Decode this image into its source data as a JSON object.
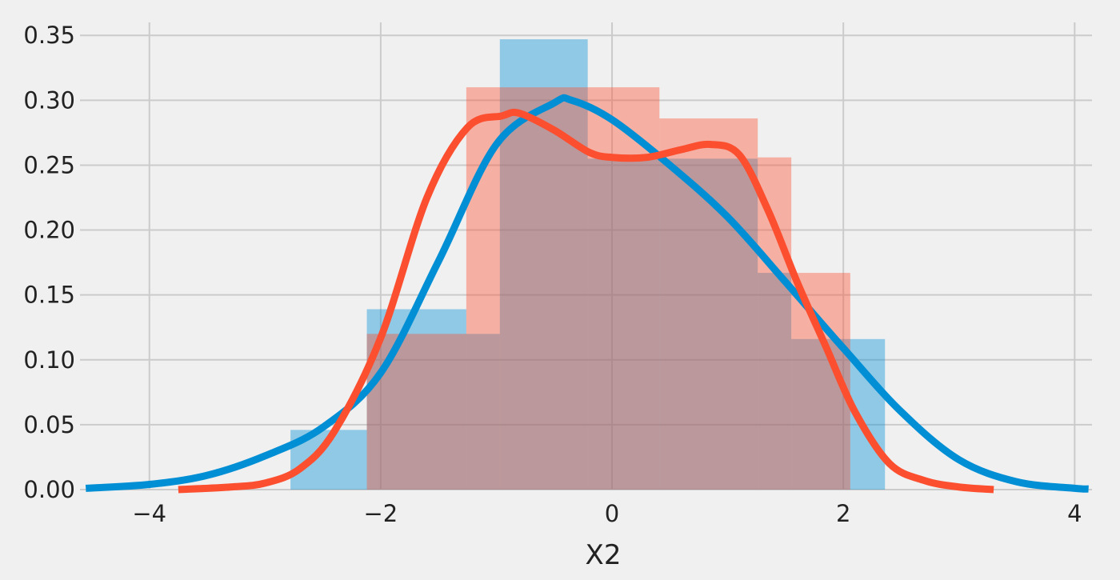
{
  "chart_data": {
    "type": "histogram",
    "title": "",
    "xlabel": "X2",
    "ylabel": "",
    "xlim": [
      -4.6,
      4.15
    ],
    "ylim": [
      0,
      0.36
    ],
    "xticks": [
      -4,
      -2,
      0,
      2,
      4
    ],
    "xtick_labels": [
      "−4",
      "−2",
      "0",
      "2",
      "4"
    ],
    "yticks": [
      0,
      0.05,
      0.1,
      0.15,
      0.2,
      0.25,
      0.3,
      0.35
    ],
    "ytick_labels": [
      "0.00",
      "0.05",
      "0.10",
      "0.15",
      "0.20",
      "0.25",
      "0.30",
      "0.35"
    ],
    "grid": true,
    "legend": null,
    "series": [
      {
        "color": "#008fd5",
        "hist_color": "#008fd5",
        "hist_opacity": 0.4,
        "bins": [
          {
            "x0": -2.78,
            "x1": -2.12,
            "height": 0.046
          },
          {
            "x0": -2.12,
            "x1": -1.26,
            "height": 0.139
          },
          {
            "x0": -1.26,
            "x1": -0.97,
            "height": 0.12
          },
          {
            "x0": -0.97,
            "x1": -0.21,
            "height": 0.347
          },
          {
            "x0": -0.21,
            "x1": 1.26,
            "height": 0.255
          },
          {
            "x0": 1.26,
            "x1": 1.55,
            "height": 0.167
          },
          {
            "x0": 1.55,
            "x1": 2.36,
            "height": 0.116
          }
        ],
        "kde": {
          "x": [
            -4.55,
            -4.0,
            -3.5,
            -3.0,
            -2.5,
            -2.0,
            -1.5,
            -1.0,
            -0.5,
            -0.35,
            0.0,
            0.5,
            1.0,
            1.5,
            2.0,
            2.5,
            3.0,
            3.5,
            4.0,
            4.12
          ],
          "y": [
            0.001,
            0.004,
            0.011,
            0.026,
            0.048,
            0.09,
            0.176,
            0.266,
            0.298,
            0.3,
            0.285,
            0.25,
            0.21,
            0.16,
            0.109,
            0.06,
            0.023,
            0.006,
            0.001,
            0.0005
          ]
        }
      },
      {
        "color": "#fc4f30",
        "hist_color": "#fc4f30",
        "hist_opacity": 0.4,
        "bins": [
          {
            "x0": -2.12,
            "x1": -1.26,
            "height": 0.12
          },
          {
            "x0": -1.26,
            "x1": 0.41,
            "height": 0.31
          },
          {
            "x0": 0.41,
            "x1": 1.26,
            "height": 0.286
          },
          {
            "x0": 1.26,
            "x1": 1.55,
            "height": 0.256
          },
          {
            "x0": 1.55,
            "x1": 2.06,
            "height": 0.167
          }
        ],
        "kde": {
          "x": [
            -3.75,
            -3.3,
            -3.0,
            -2.7,
            -2.4,
            -2.0,
            -1.6,
            -1.25,
            -0.95,
            -0.8,
            -0.5,
            -0.2,
            0.0,
            0.3,
            0.6,
            0.85,
            1.1,
            1.35,
            1.6,
            1.85,
            2.1,
            2.4,
            2.7,
            3.0,
            3.3
          ],
          "y": [
            0.0,
            0.002,
            0.005,
            0.016,
            0.045,
            0.117,
            0.225,
            0.279,
            0.288,
            0.29,
            0.277,
            0.26,
            0.256,
            0.256,
            0.262,
            0.266,
            0.258,
            0.215,
            0.16,
            0.11,
            0.06,
            0.02,
            0.007,
            0.002,
            0.0
          ]
        }
      }
    ]
  }
}
